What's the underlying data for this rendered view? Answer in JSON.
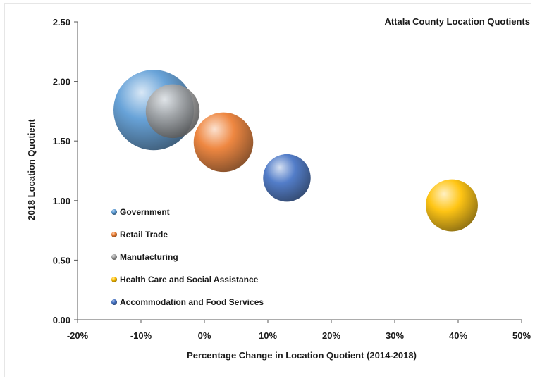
{
  "chart_data": {
    "type": "bubble",
    "title": "Attala County Location Quotients",
    "xlabel": "Percentage Change in Location Quotient (2014-2018)",
    "ylabel": "2018 Location Quotient",
    "xlim": [
      -0.2,
      0.5
    ],
    "ylim": [
      0.0,
      2.5
    ],
    "x_ticks": [
      -0.2,
      -0.1,
      0.0,
      0.1,
      0.2,
      0.3,
      0.4,
      0.5
    ],
    "x_tick_labels": [
      "-20%",
      "-10%",
      "0%",
      "10%",
      "20%",
      "30%",
      "40%",
      "50%"
    ],
    "y_ticks": [
      0.0,
      0.5,
      1.0,
      1.5,
      2.0,
      2.5
    ],
    "y_tick_labels": [
      "0.00",
      "0.50",
      "1.00",
      "1.50",
      "2.00",
      "2.50"
    ],
    "grid": false,
    "legend_position": "left-center",
    "bubble_size_note": "relative employment",
    "series": [
      {
        "name": "Government",
        "color": "#5b9bd5",
        "x": -0.08,
        "y": 1.76,
        "size": 1.0
      },
      {
        "name": "Retail Trade",
        "color": "#ed7d31",
        "x": 0.03,
        "y": 1.49,
        "size": 0.55
      },
      {
        "name": "Manufacturing",
        "color": "#a5a5a5",
        "x": -0.05,
        "y": 1.75,
        "size": 0.45
      },
      {
        "name": "Health Care and Social Assistance",
        "color": "#ffc000",
        "x": 0.39,
        "y": 0.96,
        "size": 0.42
      },
      {
        "name": "Accommodation and Food Services",
        "color": "#4472c4",
        "x": 0.13,
        "y": 1.19,
        "size": 0.35
      }
    ]
  }
}
